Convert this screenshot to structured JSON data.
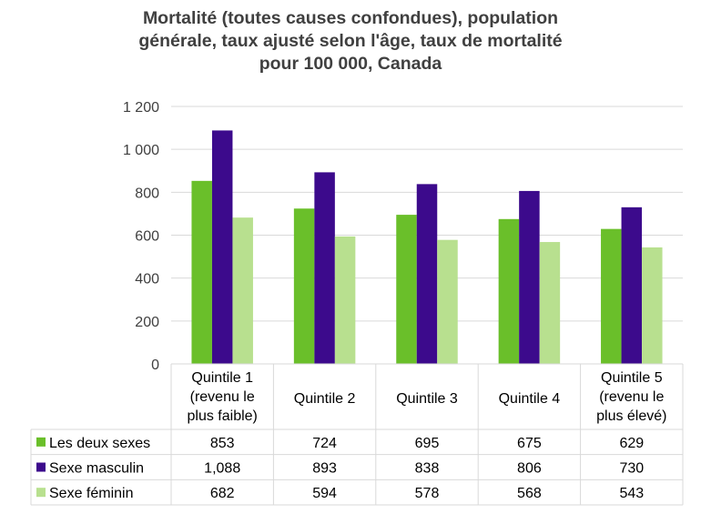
{
  "chart_data": {
    "type": "bar",
    "title_lines": [
      "Mortalité (toutes causes confondues), population",
      "générale, taux ajusté selon l'âge, taux de mortalité",
      "pour 100 000, Canada"
    ],
    "categories": [
      [
        "Quintile 1",
        "(revenu le",
        "plus faible)"
      ],
      [
        "Quintile 2"
      ],
      [
        "Quintile 3"
      ],
      [
        "Quintile 4"
      ],
      [
        "Quintile 5",
        "(revenu le",
        "plus élevé)"
      ]
    ],
    "ylim": [
      0,
      1200
    ],
    "yticks": [
      0,
      200,
      400,
      600,
      800,
      1000,
      1200
    ],
    "ytick_labels": [
      "0",
      "200",
      "400",
      "600",
      "800",
      "1 000",
      "1 200"
    ],
    "grid": true,
    "series": [
      {
        "name": "Les deux sexes",
        "color": "#6abf2a",
        "values": [
          853,
          724,
          695,
          675,
          629
        ],
        "labels": [
          "853",
          "724",
          "695",
          "675",
          "629"
        ]
      },
      {
        "name": "Sexe masculin",
        "color": "#3c0a8c",
        "values": [
          1088,
          893,
          838,
          806,
          730
        ],
        "labels": [
          "1,088",
          "893",
          "838",
          "806",
          "730"
        ]
      },
      {
        "name": "Sexe féminin",
        "color": "#b8e08f",
        "values": [
          682,
          594,
          578,
          568,
          543
        ],
        "labels": [
          "682",
          "594",
          "578",
          "568",
          "543"
        ]
      }
    ]
  }
}
